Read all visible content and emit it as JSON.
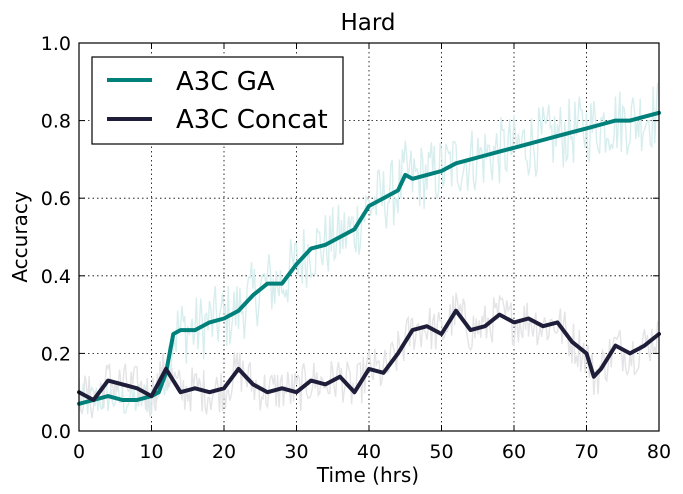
{
  "chart_data": {
    "type": "line",
    "title": "Hard",
    "xlabel": "Time (hrs)",
    "ylabel": "Accuracy",
    "xlim": [
      0,
      80
    ],
    "ylim": [
      0.0,
      1.0
    ],
    "xticks": [
      "0",
      "10",
      "20",
      "30",
      "40",
      "50",
      "60",
      "70",
      "80"
    ],
    "yticks": [
      "0.0",
      "0.2",
      "0.4",
      "0.6",
      "0.8",
      "1.0"
    ],
    "grid": true,
    "legend_position": "top-left",
    "series": [
      {
        "name": "A3C GA",
        "color": "#00807a",
        "band_color": "#d8eeee",
        "x": [
          0,
          2,
          4,
          6,
          8,
          10,
          11,
          12,
          13,
          14,
          16,
          18,
          20,
          22,
          24,
          26,
          28,
          30,
          32,
          34,
          36,
          38,
          40,
          42,
          44,
          45,
          46,
          48,
          50,
          52,
          54,
          56,
          58,
          60,
          62,
          64,
          66,
          68,
          70,
          72,
          74,
          76,
          78,
          80
        ],
        "y": [
          0.07,
          0.08,
          0.09,
          0.08,
          0.08,
          0.09,
          0.1,
          0.15,
          0.25,
          0.26,
          0.26,
          0.28,
          0.29,
          0.31,
          0.35,
          0.38,
          0.38,
          0.43,
          0.47,
          0.48,
          0.5,
          0.52,
          0.58,
          0.6,
          0.62,
          0.66,
          0.65,
          0.66,
          0.67,
          0.69,
          0.7,
          0.71,
          0.72,
          0.73,
          0.74,
          0.75,
          0.76,
          0.77,
          0.78,
          0.79,
          0.8,
          0.8,
          0.81,
          0.82
        ]
      },
      {
        "name": "A3C Concat",
        "color": "#1e1e3a",
        "band_color": "#e4e4e6",
        "x": [
          0,
          2,
          4,
          6,
          8,
          10,
          12,
          14,
          16,
          18,
          20,
          22,
          24,
          26,
          28,
          30,
          32,
          34,
          36,
          38,
          40,
          42,
          44,
          46,
          48,
          50,
          52,
          54,
          56,
          58,
          60,
          62,
          64,
          66,
          68,
          70,
          71,
          72,
          74,
          76,
          78,
          80
        ],
        "y": [
          0.1,
          0.08,
          0.13,
          0.12,
          0.11,
          0.09,
          0.16,
          0.1,
          0.11,
          0.1,
          0.11,
          0.16,
          0.12,
          0.1,
          0.11,
          0.1,
          0.13,
          0.12,
          0.14,
          0.1,
          0.16,
          0.15,
          0.2,
          0.26,
          0.27,
          0.25,
          0.31,
          0.26,
          0.27,
          0.3,
          0.28,
          0.29,
          0.27,
          0.28,
          0.23,
          0.2,
          0.14,
          0.16,
          0.22,
          0.2,
          0.22,
          0.25
        ]
      }
    ]
  }
}
